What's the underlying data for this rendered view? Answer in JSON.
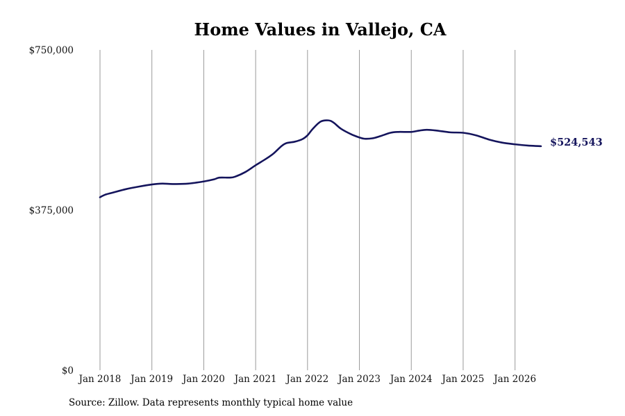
{
  "chart_data": {
    "type": "line",
    "title": "Home Values in Vallejo, CA",
    "xlabel": "",
    "ylabel": "",
    "ylim": [
      0,
      750000
    ],
    "yticks": [
      {
        "value": 0,
        "label": "$0"
      },
      {
        "value": 375000,
        "label": "$375,000"
      },
      {
        "value": 750000,
        "label": "$750,000"
      }
    ],
    "xlim": [
      2018.0,
      2026.5
    ],
    "xticks": [
      {
        "value": 2018,
        "label": "Jan 2018"
      },
      {
        "value": 2019,
        "label": "Jan 2019"
      },
      {
        "value": 2020,
        "label": "Jan 2020"
      },
      {
        "value": 2021,
        "label": "Jan 2021"
      },
      {
        "value": 2022,
        "label": "Jan 2022"
      },
      {
        "value": 2023,
        "label": "Jan 2023"
      },
      {
        "value": 2024,
        "label": "Jan 2024"
      },
      {
        "value": 2025,
        "label": "Jan 2025"
      },
      {
        "value": 2026,
        "label": "Jan 2026"
      }
    ],
    "grid": {
      "vertical": true,
      "horizontal": false
    },
    "legend": "none",
    "line_color": "#14145c",
    "series": [
      {
        "values": [
          [
            2018.0,
            405000
          ],
          [
            2018.1,
            411000
          ],
          [
            2018.25,
            416000
          ],
          [
            2018.5,
            424000
          ],
          [
            2018.75,
            430000
          ],
          [
            2019.0,
            435000
          ],
          [
            2019.2,
            437000
          ],
          [
            2019.4,
            436000
          ],
          [
            2019.7,
            437000
          ],
          [
            2020.0,
            442000
          ],
          [
            2020.2,
            447000
          ],
          [
            2020.3,
            451000
          ],
          [
            2020.5,
            451000
          ],
          [
            2020.6,
            453000
          ],
          [
            2020.8,
            464000
          ],
          [
            2021.0,
            480000
          ],
          [
            2021.2,
            495000
          ],
          [
            2021.35,
            508000
          ],
          [
            2021.5,
            525000
          ],
          [
            2021.6,
            532000
          ],
          [
            2021.75,
            535000
          ],
          [
            2021.9,
            541000
          ],
          [
            2022.0,
            550000
          ],
          [
            2022.1,
            565000
          ],
          [
            2022.25,
            582000
          ],
          [
            2022.4,
            585000
          ],
          [
            2022.5,
            580000
          ],
          [
            2022.65,
            565000
          ],
          [
            2022.85,
            552000
          ],
          [
            2023.0,
            545000
          ],
          [
            2023.1,
            542000
          ],
          [
            2023.25,
            543000
          ],
          [
            2023.4,
            548000
          ],
          [
            2023.6,
            556000
          ],
          [
            2023.75,
            558000
          ],
          [
            2024.0,
            558000
          ],
          [
            2024.15,
            561000
          ],
          [
            2024.3,
            563000
          ],
          [
            2024.5,
            561000
          ],
          [
            2024.75,
            557000
          ],
          [
            2025.0,
            556000
          ],
          [
            2025.25,
            550000
          ],
          [
            2025.5,
            540000
          ],
          [
            2025.75,
            533000
          ],
          [
            2026.0,
            529000
          ],
          [
            2026.25,
            526000
          ],
          [
            2026.5,
            524543
          ]
        ]
      }
    ],
    "end_label": "$524,543",
    "source": "Source: Zillow. Data represents monthly typical home value"
  }
}
